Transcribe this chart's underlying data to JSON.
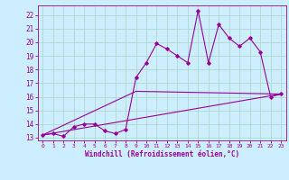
{
  "xlabel": "Windchill (Refroidissement éolien,°C)",
  "ylabel": "",
  "bg_color": "#cceeff",
  "grid_color": "#b0d8cc",
  "line_color": "#990099",
  "xlim": [
    -0.5,
    23.5
  ],
  "ylim": [
    12.8,
    22.7
  ],
  "yticks": [
    13,
    14,
    15,
    16,
    17,
    18,
    19,
    20,
    21,
    22
  ],
  "xticks": [
    0,
    1,
    2,
    3,
    4,
    5,
    6,
    7,
    8,
    9,
    10,
    11,
    12,
    13,
    14,
    15,
    16,
    17,
    18,
    19,
    20,
    21,
    22,
    23
  ],
  "series1_x": [
    0,
    1,
    2,
    3,
    4,
    5,
    6,
    7,
    8,
    9,
    10,
    11,
    12,
    13,
    14,
    15,
    16,
    17,
    18,
    19,
    20,
    21,
    22,
    23
  ],
  "series1_y": [
    13.2,
    13.3,
    13.1,
    13.8,
    14.0,
    14.0,
    13.5,
    13.3,
    13.6,
    17.4,
    18.5,
    19.9,
    19.5,
    19.0,
    18.5,
    22.3,
    18.5,
    21.3,
    20.3,
    19.7,
    20.3,
    19.3,
    16.0,
    16.2
  ],
  "series2_x": [
    0,
    23
  ],
  "series2_y": [
    13.2,
    16.2
  ],
  "series3_x": [
    0,
    9,
    23
  ],
  "series3_y": [
    13.2,
    16.4,
    16.2
  ]
}
